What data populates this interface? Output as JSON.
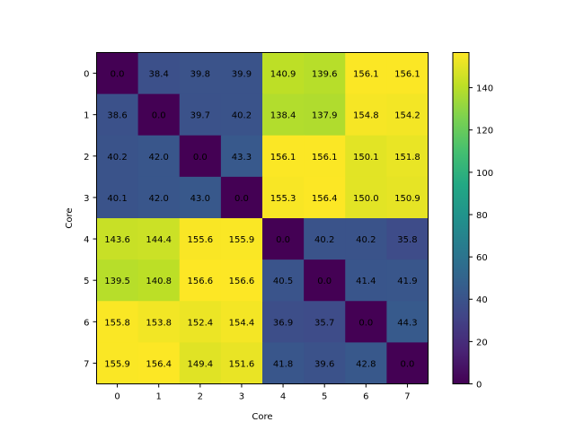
{
  "chart_data": {
    "type": "heatmap",
    "title": "",
    "xlabel": "Core",
    "ylabel": "Core",
    "x_categories": [
      "0",
      "1",
      "2",
      "3",
      "4",
      "5",
      "6",
      "7"
    ],
    "y_categories": [
      "0",
      "1",
      "2",
      "3",
      "4",
      "5",
      "6",
      "7"
    ],
    "values": [
      [
        0.0,
        38.4,
        39.8,
        39.9,
        140.9,
        139.6,
        156.1,
        156.1
      ],
      [
        38.6,
        0.0,
        39.7,
        40.2,
        138.4,
        137.9,
        154.8,
        154.2
      ],
      [
        40.2,
        42.0,
        0.0,
        43.3,
        156.1,
        156.1,
        150.1,
        151.8
      ],
      [
        40.1,
        42.0,
        43.0,
        0.0,
        155.3,
        156.4,
        150.0,
        150.9
      ],
      [
        143.6,
        144.4,
        155.6,
        155.9,
        0.0,
        40.2,
        40.2,
        35.8
      ],
      [
        139.5,
        140.8,
        156.6,
        156.6,
        40.5,
        0.0,
        41.4,
        41.9
      ],
      [
        155.8,
        153.8,
        152.4,
        154.4,
        36.9,
        35.7,
        0.0,
        44.3
      ],
      [
        155.9,
        156.4,
        149.4,
        151.6,
        41.8,
        39.6,
        42.8,
        0.0
      ]
    ],
    "colormap": "viridis",
    "colorbar": {
      "range": [
        0,
        156.6
      ],
      "ticks": [
        0,
        20,
        40,
        60,
        80,
        100,
        120,
        140
      ]
    },
    "grid": false
  }
}
